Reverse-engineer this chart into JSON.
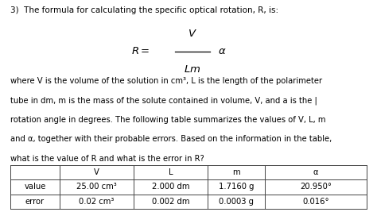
{
  "title_text": "3)  The formula for calculating the specific optical rotation, R, is:",
  "body_text_lines": [
    "where V is the volume of the solution in cm³, L is the length of the polarimeter",
    "tube in dm, m is the mass of the solute contained in volume, V, and a is the |",
    "rotation angle in degrees. The following table summarizes the values of V, L, m",
    "and α, together with their probable errors. Based on the information in the table,",
    "what is the value of R and what is the error in R?"
  ],
  "table_headers": [
    "",
    "V",
    "L",
    "m",
    "α"
  ],
  "table_row1_label": "value",
  "table_row1_values": [
    "25.00 cm³",
    "2.000 dm",
    "1.7160 g",
    "20.950°"
  ],
  "table_row2_label": "error",
  "table_row2_values": [
    "0.02 cm³",
    "0.002 dm",
    "0.0003 g",
    "0.016°"
  ],
  "bg_color": "#ffffff",
  "text_color": "#000000",
  "body_fontsize": 7.2,
  "title_fontsize": 7.5,
  "formula_fontsize": 9.5,
  "table_fontsize": 7.2
}
